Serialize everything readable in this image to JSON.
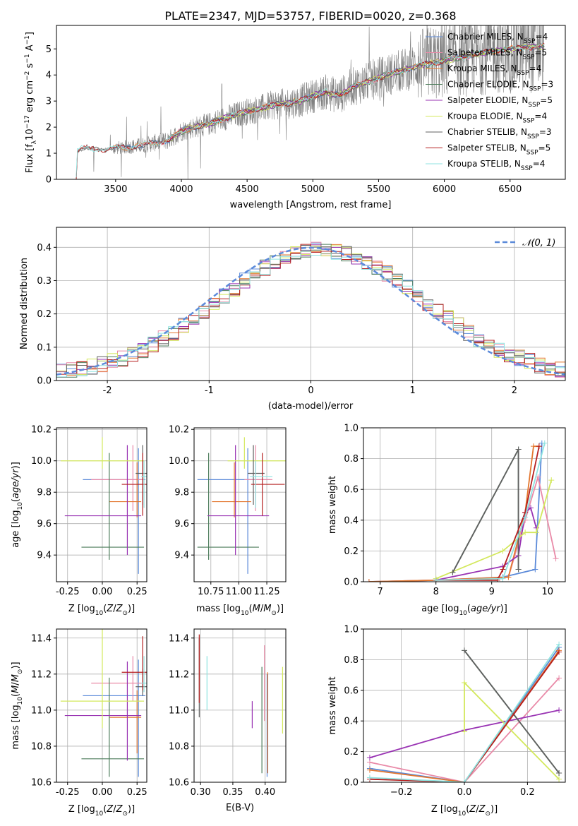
{
  "figure": {
    "title": "PLATE=2347, MJD=53757, FIBERID=0020, z=0.368"
  },
  "colors": {
    "chabrier_miles": "#5b8ad9",
    "salpeter_miles": "#e98aa8",
    "kroupa_miles": "#e3772f",
    "chabrier_elodie": "#4e7d5c",
    "salpeter_elodie": "#9933b3",
    "kroupa_elodie": "#d3e85c",
    "chabrier_stelib": "#606060",
    "salpeter_stelib": "#b51f1f",
    "kroupa_stelib": "#8fe3e0"
  },
  "chart_data": [
    {
      "id": "spectrum",
      "type": "line",
      "xlabel": "wavelength [Angstrom, rest frame]",
      "ylabel": "Flux [f_λ 10^-17 erg cm^-2 s^-1 A^-1]",
      "xlim": [
        3050,
        6920
      ],
      "ylim": [
        0,
        5.9
      ],
      "xticks": [
        3500,
        4000,
        4500,
        5000,
        5500,
        6000,
        6500
      ],
      "yticks": [
        0,
        1,
        2,
        3,
        4,
        5
      ],
      "legend_placement": "upper-right",
      "legend": [
        {
          "name": "Chabrier MILES, N",
          "sub": "SSP",
          "suffix": "=4",
          "color_key": "chabrier_miles"
        },
        {
          "name": "Salpeter MILES, N",
          "sub": "SSP",
          "suffix": "=5",
          "color_key": "salpeter_miles"
        },
        {
          "name": "Kroupa MILES, N",
          "sub": "SSP",
          "suffix": "=4",
          "color_key": "kroupa_miles"
        },
        {
          "name": "Chabrier ELODIE, N",
          "sub": "SSP",
          "suffix": "=3",
          "color_key": "chabrier_elodie"
        },
        {
          "name": "Salpeter ELODIE, N",
          "sub": "SSP",
          "suffix": "=5",
          "color_key": "salpeter_elodie"
        },
        {
          "name": "Kroupa ELODIE, N",
          "sub": "SSP",
          "suffix": "=4",
          "color_key": "kroupa_elodie"
        },
        {
          "name": "Chabrier STELIB, N",
          "sub": "SSP",
          "suffix": "=3",
          "color_key": "chabrier_stelib"
        },
        {
          "name": "Salpeter STELIB, N",
          "sub": "SSP",
          "suffix": "=5",
          "color_key": "salpeter_stelib"
        },
        {
          "name": "Kroupa STELIB, N",
          "sub": "SSP",
          "suffix": "=4",
          "color_key": "kroupa_stelib"
        }
      ],
      "continuum": [
        [
          3200,
          0.0
        ],
        [
          3210,
          1.1
        ],
        [
          3250,
          1.2
        ],
        [
          3300,
          1.15
        ],
        [
          3400,
          1.15
        ],
        [
          3500,
          1.2
        ],
        [
          3600,
          1.25
        ],
        [
          3700,
          1.3
        ],
        [
          3800,
          1.4
        ],
        [
          3900,
          1.5
        ],
        [
          4000,
          1.85
        ],
        [
          4100,
          2.0
        ],
        [
          4200,
          2.1
        ],
        [
          4300,
          2.3
        ],
        [
          4400,
          2.45
        ],
        [
          4500,
          2.6
        ],
        [
          4600,
          2.7
        ],
        [
          4700,
          2.85
        ],
        [
          4800,
          2.9
        ],
        [
          4900,
          3.0
        ],
        [
          5000,
          3.2
        ],
        [
          5100,
          3.35
        ],
        [
          5200,
          3.2
        ],
        [
          5300,
          3.55
        ],
        [
          5400,
          3.7
        ],
        [
          5500,
          3.9
        ],
        [
          5600,
          4.05
        ],
        [
          5700,
          4.2
        ],
        [
          5800,
          4.35
        ],
        [
          5900,
          4.45
        ],
        [
          6000,
          4.55
        ],
        [
          6100,
          4.65
        ],
        [
          6200,
          4.75
        ],
        [
          6300,
          4.85
        ],
        [
          6400,
          4.95
        ],
        [
          6500,
          5.0
        ],
        [
          6600,
          5.05
        ],
        [
          6700,
          5.1
        ],
        [
          6760,
          5.1
        ]
      ]
    },
    {
      "id": "residual_hist",
      "type": "histogram",
      "xlabel": "(data-model)/error",
      "ylabel": "Normed distribution",
      "xlim": [
        -2.5,
        2.5
      ],
      "ylim": [
        0,
        0.46
      ],
      "xticks": [
        -2,
        -1,
        0,
        1,
        2
      ],
      "yticks": [
        0.0,
        0.1,
        0.2,
        0.3,
        0.4
      ],
      "bin_width": 0.1,
      "reference_curve": {
        "label": "N(0,1)",
        "style": "dashed",
        "color": "#5b8ad9"
      },
      "legend_placement": "upper-right"
    },
    {
      "id": "age_vs_Z",
      "type": "scatter",
      "xlabel": "Z [log10(Z/Z⊙)]",
      "ylabel": "age  [log10(age/yr)]",
      "xlim": [
        -0.33,
        0.32
      ],
      "ylim": [
        9.23,
        10.21
      ],
      "xticks": [
        -0.25,
        0.0,
        0.25
      ],
      "yticks": [
        9.4,
        9.6,
        9.8,
        10.0,
        10.2
      ]
    },
    {
      "id": "age_vs_mass",
      "type": "scatter",
      "xlabel": "mass [log10(M/M⊙)]",
      "ylabel": "",
      "xlim": [
        10.6,
        11.42
      ],
      "ylim": [
        9.23,
        10.21
      ],
      "xticks": [
        10.75,
        11.0,
        11.25
      ],
      "yticks": [
        9.4,
        9.6,
        9.8,
        10.0,
        10.2
      ]
    },
    {
      "id": "weight_vs_age",
      "type": "line",
      "xlabel": "age  [log10(age/yr)]",
      "ylabel": "mass weight",
      "xlim": [
        6.7,
        10.32
      ],
      "ylim": [
        0,
        1
      ],
      "xticks": [
        7,
        8,
        9,
        10
      ],
      "yticks": [
        0.0,
        0.2,
        0.4,
        0.6,
        0.8,
        1.0
      ]
    },
    {
      "id": "mass_vs_Z",
      "type": "scatter",
      "xlabel": "Z [log10(Z/Z⊙)]",
      "ylabel": "mass [log10(M/M⊙)]",
      "xlim": [
        -0.33,
        0.32
      ],
      "ylim": [
        10.6,
        11.45
      ],
      "xticks": [
        -0.25,
        0.0,
        0.25
      ],
      "yticks": [
        10.6,
        10.8,
        11.0,
        11.2,
        11.4
      ]
    },
    {
      "id": "mass_vs_ebv",
      "type": "scatter",
      "xlabel": "E(B-V)",
      "ylabel": "",
      "xlim": [
        0.29,
        0.432
      ],
      "ylim": [
        10.6,
        11.45
      ],
      "xticks": [
        0.3,
        0.35,
        0.4
      ],
      "yticks": [
        10.6,
        10.8,
        11.0,
        11.2,
        11.4
      ]
    },
    {
      "id": "weight_vs_Z",
      "type": "line",
      "xlabel": "Z [log10(Z/Z⊙)]",
      "ylabel": "mass weight",
      "xlim": [
        -0.32,
        0.32
      ],
      "ylim": [
        0,
        1
      ],
      "xticks": [
        -0.2,
        0.0,
        0.2
      ],
      "yticks": [
        0.0,
        0.2,
        0.4,
        0.6,
        0.8,
        1.0
      ]
    }
  ],
  "models": [
    {
      "color_key": "chabrier_miles",
      "Z": 0.26,
      "Zerr": [
        0.4,
        0.05
      ],
      "age": 9.88,
      "ageErr": [
        0.6,
        0.2
      ],
      "mass": 11.08,
      "massErr": [
        0.45,
        0.2
      ],
      "ebv": 0.403,
      "massE": [
        10.63,
        11.2
      ],
      "w_age": [
        [
          6.8,
          0.0
        ],
        [
          8.0,
          0.01
        ],
        [
          9.2,
          0.03
        ],
        [
          9.78,
          0.08
        ],
        [
          9.9,
          0.9
        ]
      ],
      "w_Z": [
        [
          -0.3,
          0.09
        ],
        [
          0.0,
          0.0
        ],
        [
          0.3,
          0.88
        ]
      ]
    },
    {
      "color_key": "salpeter_miles",
      "Z": 0.22,
      "Zerr": [
        0.3,
        0.08
      ],
      "age": 9.88,
      "ageErr": [
        0.2,
        0.22
      ],
      "mass": 11.15,
      "massErr": [
        0.1,
        0.15
      ],
      "ebv": 0.399,
      "massE": [
        10.94,
        11.36
      ],
      "w_age": [
        [
          6.8,
          0.0
        ],
        [
          8.0,
          0.01
        ],
        [
          9.3,
          0.03
        ],
        [
          9.6,
          0.4
        ],
        [
          9.83,
          0.68
        ],
        [
          10.15,
          0.15
        ]
      ],
      "w_Z": [
        [
          -0.3,
          0.13
        ],
        [
          0.0,
          0.0
        ],
        [
          0.3,
          0.68
        ]
      ]
    },
    {
      "color_key": "kroupa_miles",
      "Z": 0.25,
      "Zerr": [
        0.2,
        0.03
      ],
      "age": 9.74,
      "ageErr": [
        0.1,
        0.25
      ],
      "mass": 10.96,
      "massErr": [
        0.2,
        0.15
      ],
      "ebv": 0.404,
      "massE": [
        10.65,
        11.21
      ],
      "w_age": [
        [
          6.8,
          0.0
        ],
        [
          8.0,
          0.01
        ],
        [
          9.3,
          0.03
        ],
        [
          9.6,
          0.45
        ],
        [
          9.75,
          0.88
        ],
        [
          9.85,
          0.88
        ]
      ],
      "w_Z": [
        [
          -0.3,
          0.08
        ],
        [
          0.0,
          0.0
        ],
        [
          0.3,
          0.86
        ]
      ]
    },
    {
      "color_key": "chabrier_elodie",
      "Z": 0.05,
      "Zerr": [
        0.2,
        0.25
      ],
      "age": 9.45,
      "ageErr": [
        0.08,
        0.6
      ],
      "mass": 10.73,
      "massErr": [
        0.1,
        0.45
      ],
      "ebv": 0.395,
      "massE": [
        10.65,
        11.24
      ],
      "w_age": [
        [
          8.3,
          0.06
        ],
        [
          9.48,
          0.86
        ],
        [
          9.48,
          0.08
        ]
      ],
      "w_Z": [
        [
          0.0,
          0.86
        ],
        [
          0.3,
          0.06
        ]
      ]
    },
    {
      "color_key": "salpeter_elodie",
      "Z": 0.18,
      "Zerr": [
        0.45,
        0.1
      ],
      "age": 9.65,
      "ageErr": [
        0.25,
        0.45
      ],
      "mass": 10.97,
      "massErr": [
        0.25,
        0.3
      ],
      "ebv": 0.38,
      "massE": [
        10.9,
        11.05
      ],
      "w_age": [
        [
          8.0,
          0.01
        ],
        [
          9.2,
          0.1
        ],
        [
          9.48,
          0.17
        ],
        [
          9.6,
          0.45
        ],
        [
          9.7,
          0.48
        ],
        [
          9.8,
          0.35
        ]
      ],
      "w_Z": [
        [
          -0.3,
          0.16
        ],
        [
          0.0,
          0.34
        ],
        [
          0.3,
          0.47
        ]
      ]
    },
    {
      "color_key": "kroupa_elodie",
      "Z": 0.0,
      "Zerr": [
        0.3,
        0.3
      ],
      "age": 10.0,
      "ageErr": [
        0.05,
        0.15
      ],
      "mass": 11.05,
      "massErr": [
        0.15,
        0.4
      ],
      "ebv": 0.427,
      "massE": [
        10.87,
        11.24
      ],
      "w_age": [
        [
          8.0,
          0.02
        ],
        [
          9.2,
          0.2
        ],
        [
          9.6,
          0.32
        ],
        [
          9.8,
          0.32
        ],
        [
          10.07,
          0.66
        ]
      ],
      "w_Z": [
        [
          0.0,
          0.33
        ],
        [
          0.0,
          0.65
        ],
        [
          0.3,
          0.02
        ]
      ]
    },
    {
      "color_key": "chabrier_stelib",
      "Z": 0.29,
      "Zerr": [
        0.05,
        0.03
      ],
      "age": 9.92,
      "ageErr": [
        0.2,
        0.18
      ],
      "mass": 11.13,
      "massErr": [
        0.05,
        0.1
      ],
      "ebv": 0.298,
      "massE": [
        10.96,
        11.4
      ],
      "w_age": [
        [
          8.3,
          0.06
        ],
        [
          9.48,
          0.86
        ],
        [
          9.48,
          0.08
        ]
      ],
      "w_Z": [
        [
          0.0,
          0.86
        ],
        [
          0.3,
          0.06
        ]
      ]
    },
    {
      "color_key": "salpeter_stelib",
      "Z": 0.29,
      "Zerr": [
        0.15,
        0.04
      ],
      "age": 9.85,
      "ageErr": [
        0.2,
        0.2
      ],
      "mass": 11.21,
      "massErr": [
        0.1,
        0.2
      ],
      "ebv": 0.298,
      "massE": [
        11.04,
        11.42
      ],
      "w_age": [
        [
          8.0,
          0.01
        ],
        [
          9.1,
          0.01
        ],
        [
          9.2,
          0.08
        ],
        [
          9.6,
          0.45
        ],
        [
          9.85,
          0.88
        ]
      ],
      "w_Z": [
        [
          -0.3,
          0.02
        ],
        [
          0.0,
          0.0
        ],
        [
          0.3,
          0.85
        ]
      ]
    },
    {
      "color_key": "kroupa_stelib",
      "Z": 0.3,
      "Zerr": [
        0.02,
        0.02
      ],
      "age": 9.9,
      "ageErr": [
        0.2,
        0.1
      ],
      "mass": 11.15,
      "massErr": [
        0.05,
        0.15
      ],
      "ebv": 0.31,
      "massE": [
        11.0,
        11.3
      ],
      "w_age": [
        [
          8.0,
          0.01
        ],
        [
          9.2,
          0.02
        ],
        [
          9.6,
          0.42
        ],
        [
          9.95,
          0.9
        ]
      ],
      "w_Z": [
        [
          -0.3,
          0.03
        ],
        [
          0.0,
          0.0
        ],
        [
          0.3,
          0.9
        ]
      ]
    }
  ]
}
